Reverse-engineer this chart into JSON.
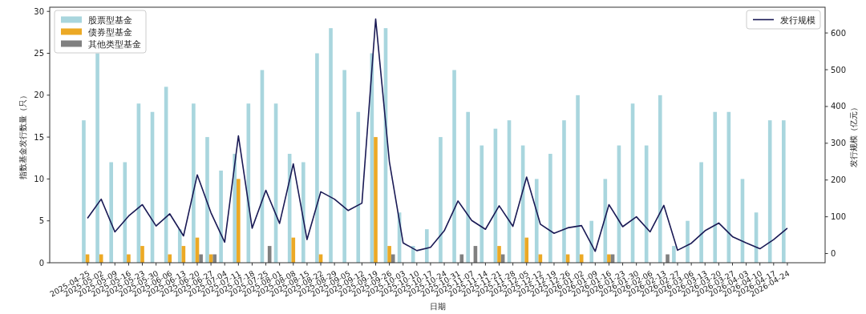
{
  "chart_data": {
    "type": "bar",
    "xlabel": "日期",
    "ylabel": "指数基金发行数量（只）",
    "y2label": "发行规模（亿元）",
    "categories": [
      "2025-04-25",
      "2025-05-02",
      "2025-05-09",
      "2025-05-16",
      "2025-05-23",
      "2025-05-30",
      "2025-06-06",
      "2025-06-13",
      "2025-06-20",
      "2025-06-27",
      "2025-07-04",
      "2025-07-11",
      "2025-07-18",
      "2025-07-25",
      "2025-08-01",
      "2025-08-08",
      "2025-08-15",
      "2025-08-22",
      "2025-08-29",
      "2025-09-05",
      "2025-09-12",
      "2025-09-19",
      "2025-09-26",
      "2025-10-03",
      "2025-10-10",
      "2025-10-17",
      "2025-10-24",
      "2025-10-31",
      "2025-11-07",
      "2025-11-14",
      "2025-11-21",
      "2025-11-28",
      "2025-12-05",
      "2025-12-12",
      "2025-12-19",
      "2025-12-26",
      "2026-01-02",
      "2026-01-09",
      "2026-01-16",
      "2026-01-23",
      "2026-01-30",
      "2026-02-06",
      "2026-02-13",
      "2026-02-27",
      "2026-03-06",
      "2026-03-13",
      "2026-03-20",
      "2026-03-27",
      "2026-04-03",
      "2026-04-10",
      "2026-04-17",
      "2026-04-24"
    ],
    "series": [
      {
        "name": "股票型基金",
        "color": "#a9d6de",
        "values": [
          17,
          25,
          12,
          12,
          19,
          18,
          21,
          4,
          19,
          15,
          11,
          13,
          19,
          23,
          19,
          13,
          12,
          25,
          28,
          23,
          18,
          25,
          28,
          6,
          2,
          4,
          15,
          23,
          18,
          14,
          16,
          17,
          14,
          10,
          13,
          17,
          20,
          5,
          10,
          14,
          19,
          14,
          20,
          2,
          5,
          12,
          18,
          18,
          10,
          6,
          17,
          17
        ]
      },
      {
        "name": "债券型基金",
        "color": "#eca925",
        "values": [
          1,
          1,
          0,
          1,
          2,
          0,
          1,
          2,
          3,
          1,
          0,
          10,
          0,
          0,
          0,
          3,
          0,
          1,
          0,
          0,
          0,
          15,
          2,
          0,
          0,
          0,
          0,
          0,
          0,
          0,
          2,
          0,
          3,
          1,
          0,
          1,
          1,
          0,
          1,
          0,
          0,
          0,
          0,
          0,
          0,
          0,
          0,
          0,
          0,
          0,
          0,
          0
        ]
      },
      {
        "name": "其他类型基金",
        "color": "#808080",
        "values": [
          0,
          0,
          0,
          0,
          0,
          0,
          0,
          0,
          1,
          1,
          0,
          0,
          0,
          2,
          0,
          0,
          0,
          0,
          0,
          0,
          0,
          0,
          1,
          0,
          0,
          0,
          0,
          1,
          2,
          0,
          1,
          0,
          0,
          0,
          0,
          0,
          0,
          0,
          1,
          0,
          0,
          0,
          1,
          0,
          0,
          0,
          0,
          0,
          0,
          0,
          0,
          0
        ]
      },
      {
        "name": "发行规模",
        "type": "line",
        "axis": "y2",
        "color": "#1a1a55",
        "values": [
          96,
          148,
          59,
          102,
          133,
          75,
          108,
          48,
          214,
          111,
          31,
          320,
          69,
          172,
          82,
          244,
          38,
          168,
          148,
          117,
          137,
          638,
          250,
          29,
          8,
          17,
          62,
          143,
          90,
          66,
          130,
          74,
          208,
          80,
          55,
          70,
          76,
          6,
          133,
          73,
          100,
          59,
          131,
          9,
          28,
          62,
          83,
          46,
          29,
          13,
          38,
          69
        ]
      }
    ],
    "ylim": [
      0,
      30.5
    ],
    "yticks": [
      0,
      5,
      10,
      15,
      20,
      25,
      30
    ],
    "y2lim": [
      -25,
      670
    ],
    "y2ticks": [
      0,
      100,
      200,
      300,
      400,
      500,
      600
    ],
    "legend": "top left",
    "grid": false
  }
}
